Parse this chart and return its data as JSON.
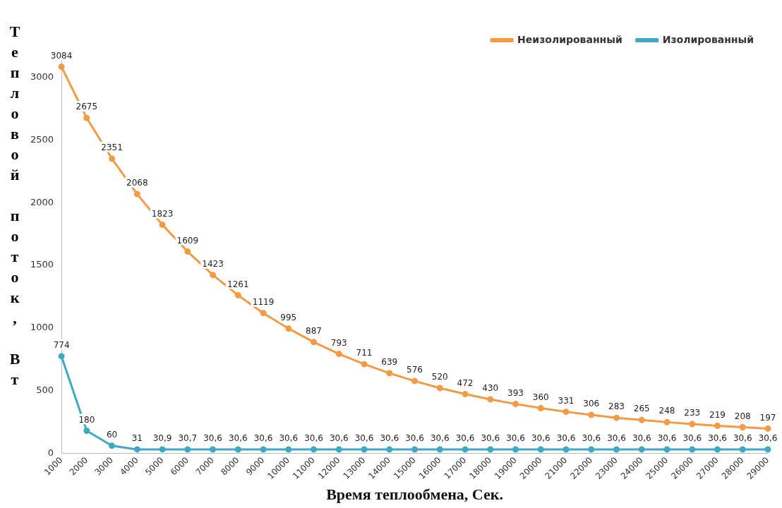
{
  "chart_data": {
    "type": "line",
    "xlabel": "Время теплообмена, Сек.",
    "ylabel": "Тепловой поток, Вт",
    "categories": [
      "1000",
      "2000",
      "3000",
      "4000",
      "5000",
      "6000",
      "7000",
      "8000",
      "9000",
      "10000",
      "11000",
      "12000",
      "13000",
      "14000",
      "15000",
      "16000",
      "17000",
      "18000",
      "19000",
      "20000",
      "21000",
      "22000",
      "23000",
      "24000",
      "25000",
      "26000",
      "27000",
      "28000",
      "29000"
    ],
    "series": [
      {
        "name": "Неизолированный",
        "color": "#f39a45",
        "values": [
          3084,
          2675,
          2351,
          2068,
          1823,
          1609,
          1423,
          1261,
          1119,
          995,
          887,
          793,
          711,
          639,
          576,
          520,
          472,
          430,
          393,
          360,
          331,
          306,
          283,
          265,
          248,
          233,
          219,
          208,
          197
        ],
        "value_labels": [
          "3084",
          "2675",
          "2351",
          "2068",
          "1823",
          "1609",
          "1423",
          "1261",
          "1119",
          "995",
          "887",
          "793",
          "711",
          "639",
          "576",
          "520",
          "472",
          "430",
          "393",
          "360",
          "331",
          "306",
          "283",
          "265",
          "248",
          "233",
          "219",
          "208",
          "197"
        ]
      },
      {
        "name": "Изолированный",
        "color": "#3fa9c5",
        "values": [
          774,
          180,
          60,
          31,
          30.9,
          30.7,
          30.6,
          30.6,
          30.6,
          30.6,
          30.6,
          30.6,
          30.6,
          30.6,
          30.6,
          30.6,
          30.6,
          30.6,
          30.6,
          30.6,
          30.6,
          30.6,
          30.6,
          30.6,
          30.6,
          30.6,
          30.6,
          30.6,
          30.6
        ],
        "value_labels": [
          "774",
          "180",
          "60",
          "31",
          "30,9",
          "30,7",
          "30,6",
          "30,6",
          "30,6",
          "30,6",
          "30,6",
          "30,6",
          "30,6",
          "30,6",
          "30,6",
          "30,6",
          "30,6",
          "30,6",
          "30,6",
          "30,6",
          "30,6",
          "30,6",
          "30,6",
          "30,6",
          "30,6",
          "30,6",
          "30,6",
          "30,6",
          "30,6"
        ]
      }
    ],
    "ylim": [
      0,
      3200
    ],
    "yticks": [
      0,
      500,
      1000,
      1500,
      2000,
      2500,
      3000
    ],
    "grid": false,
    "legend": "top right",
    "marker": "circle",
    "line_style": "solid"
  }
}
